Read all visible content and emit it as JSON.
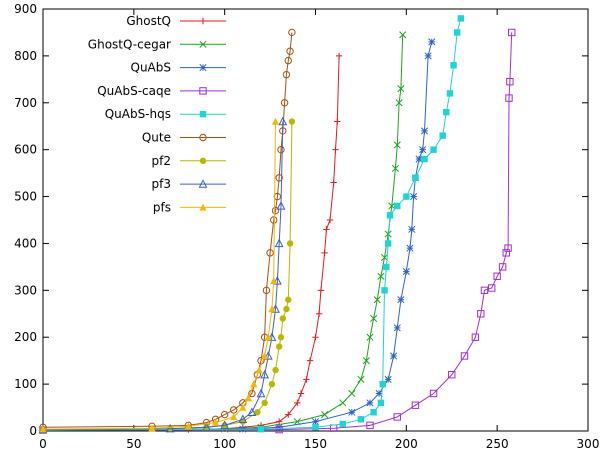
{
  "chart_data": {
    "type": "line",
    "title": "",
    "xlabel": "",
    "ylabel": "",
    "xlim": [
      0,
      300
    ],
    "ylim": [
      0,
      900
    ],
    "xticks": [
      0,
      50,
      100,
      150,
      200,
      250,
      300
    ],
    "yticks": [
      0,
      100,
      200,
      300,
      400,
      500,
      600,
      700,
      800,
      900
    ],
    "grid": false,
    "legend_position": "top-left",
    "series": [
      {
        "name": "GhostQ",
        "color": "#e41a1c",
        "marker": "plus",
        "points": [
          [
            0,
            2
          ],
          [
            80,
            3
          ],
          [
            100,
            5
          ],
          [
            110,
            8
          ],
          [
            120,
            12
          ],
          [
            130,
            20
          ],
          [
            135,
            35
          ],
          [
            140,
            60
          ],
          [
            142,
            80
          ],
          [
            145,
            110
          ],
          [
            147,
            150
          ],
          [
            150,
            200
          ],
          [
            152,
            250
          ],
          [
            153,
            300
          ],
          [
            155,
            380
          ],
          [
            156,
            430
          ],
          [
            158,
            450
          ],
          [
            160,
            530
          ],
          [
            161,
            600
          ],
          [
            162,
            660
          ],
          [
            163,
            800
          ]
        ]
      },
      {
        "name": "GhostQ-cegar",
        "color": "#1fa31f",
        "marker": "x",
        "points": [
          [
            0,
            2
          ],
          [
            100,
            4
          ],
          [
            120,
            8
          ],
          [
            140,
            20
          ],
          [
            155,
            35
          ],
          [
            165,
            60
          ],
          [
            170,
            80
          ],
          [
            175,
            110
          ],
          [
            178,
            150
          ],
          [
            180,
            200
          ],
          [
            182,
            240
          ],
          [
            184,
            280
          ],
          [
            186,
            330
          ],
          [
            188,
            370
          ],
          [
            190,
            420
          ],
          [
            192,
            480
          ],
          [
            194,
            560
          ],
          [
            195,
            610
          ],
          [
            196,
            700
          ],
          [
            197,
            730
          ],
          [
            198,
            845
          ]
        ]
      },
      {
        "name": "QuAbS",
        "color": "#2d64c8",
        "marker": "asterisk",
        "points": [
          [
            0,
            2
          ],
          [
            110,
            4
          ],
          [
            130,
            8
          ],
          [
            150,
            20
          ],
          [
            170,
            40
          ],
          [
            180,
            60
          ],
          [
            185,
            80
          ],
          [
            190,
            110
          ],
          [
            193,
            160
          ],
          [
            195,
            220
          ],
          [
            197,
            280
          ],
          [
            200,
            340
          ],
          [
            202,
            390
          ],
          [
            203,
            430
          ],
          [
            204,
            500
          ],
          [
            205,
            540
          ],
          [
            207,
            580
          ],
          [
            209,
            600
          ],
          [
            210,
            640
          ],
          [
            212,
            800
          ],
          [
            214,
            830
          ]
        ]
      },
      {
        "name": "QuAbS-caqe",
        "color": "#a12fd6",
        "marker": "square",
        "points": [
          [
            0,
            2
          ],
          [
            130,
            3
          ],
          [
            160,
            6
          ],
          [
            180,
            12
          ],
          [
            195,
            30
          ],
          [
            205,
            55
          ],
          [
            215,
            80
          ],
          [
            225,
            120
          ],
          [
            232,
            160
          ],
          [
            238,
            200
          ],
          [
            241,
            250
          ],
          [
            243,
            300
          ],
          [
            247,
            305
          ],
          [
            250,
            330
          ],
          [
            253,
            350
          ],
          [
            255,
            380
          ],
          [
            256,
            390
          ],
          [
            256.5,
            710
          ],
          [
            257,
            745
          ],
          [
            258,
            850
          ]
        ]
      },
      {
        "name": "QuAbS-hqs",
        "color": "#1fd4d4",
        "marker": "filled-square",
        "points": [
          [
            0,
            2
          ],
          [
            120,
            4
          ],
          [
            150,
            8
          ],
          [
            165,
            15
          ],
          [
            175,
            25
          ],
          [
            182,
            40
          ],
          [
            186,
            60
          ],
          [
            187,
            100
          ],
          [
            188,
            300
          ],
          [
            189,
            350
          ],
          [
            190,
            400
          ],
          [
            191,
            460
          ],
          [
            195,
            480
          ],
          [
            200,
            500
          ],
          [
            205,
            540
          ],
          [
            210,
            580
          ],
          [
            215,
            600
          ],
          [
            220,
            630
          ],
          [
            222,
            680
          ],
          [
            224,
            720
          ],
          [
            226,
            780
          ],
          [
            228,
            850
          ],
          [
            230,
            880
          ]
        ]
      },
      {
        "name": "Qute",
        "color": "#a8510f",
        "marker": "circle",
        "points": [
          [
            0,
            8
          ],
          [
            60,
            10
          ],
          [
            80,
            12
          ],
          [
            90,
            18
          ],
          [
            95,
            25
          ],
          [
            100,
            35
          ],
          [
            105,
            45
          ],
          [
            110,
            60
          ],
          [
            115,
            80
          ],
          [
            118,
            120
          ],
          [
            120,
            150
          ],
          [
            122,
            200
          ],
          [
            123,
            300
          ],
          [
            125,
            380
          ],
          [
            127,
            450
          ],
          [
            128,
            470
          ],
          [
            129,
            500
          ],
          [
            130,
            540
          ],
          [
            131,
            600
          ],
          [
            132,
            640
          ],
          [
            133,
            700
          ],
          [
            134,
            760
          ],
          [
            135,
            790
          ],
          [
            136,
            810
          ],
          [
            137,
            850
          ]
        ]
      },
      {
        "name": "pf2",
        "color": "#b8b800",
        "marker": "filled-circle",
        "points": [
          [
            0,
            3
          ],
          [
            70,
            5
          ],
          [
            90,
            8
          ],
          [
            100,
            12
          ],
          [
            110,
            20
          ],
          [
            118,
            40
          ],
          [
            122,
            60
          ],
          [
            126,
            100
          ],
          [
            128,
            130
          ],
          [
            130,
            180
          ],
          [
            131,
            200
          ],
          [
            132,
            240
          ],
          [
            134,
            260
          ],
          [
            135,
            280
          ],
          [
            136,
            400
          ],
          [
            137,
            660
          ]
        ]
      },
      {
        "name": "pf3",
        "color": "#3a5fcd",
        "marker": "triangle",
        "points": [
          [
            0,
            3
          ],
          [
            70,
            5
          ],
          [
            90,
            8
          ],
          [
            100,
            12
          ],
          [
            110,
            25
          ],
          [
            115,
            40
          ],
          [
            120,
            80
          ],
          [
            122,
            120
          ],
          [
            124,
            160
          ],
          [
            126,
            200
          ],
          [
            128,
            260
          ],
          [
            129,
            320
          ],
          [
            130,
            400
          ],
          [
            131,
            480
          ],
          [
            132,
            660
          ]
        ]
      },
      {
        "name": "pfs",
        "color": "#f5b800",
        "marker": "filled-triangle",
        "points": [
          [
            0,
            4
          ],
          [
            60,
            6
          ],
          [
            80,
            10
          ],
          [
            95,
            18
          ],
          [
            105,
            30
          ],
          [
            110,
            50
          ],
          [
            113,
            70
          ],
          [
            116,
            100
          ],
          [
            119,
            130
          ],
          [
            122,
            160
          ],
          [
            124,
            200
          ],
          [
            126,
            260
          ],
          [
            127,
            320
          ],
          [
            128,
            660
          ]
        ]
      }
    ]
  }
}
